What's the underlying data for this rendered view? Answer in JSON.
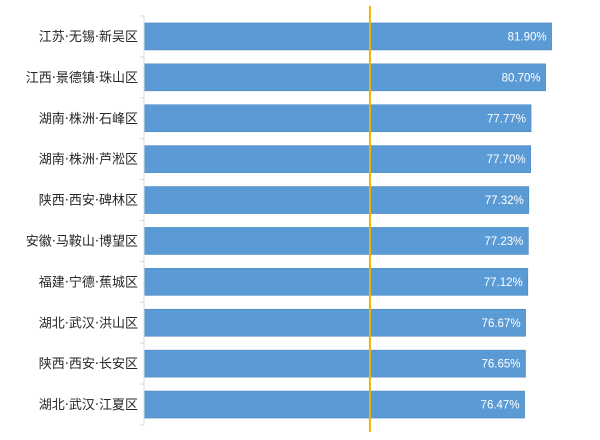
{
  "chart_data": {
    "type": "bar",
    "orientation": "horizontal",
    "categories": [
      "江苏·无锡·新吴区",
      "江西·景德镇·珠山区",
      "湖南·株洲·石峰区",
      "湖南·株洲·芦淞区",
      "陕西·西安·碑林区",
      "安徽·马鞍山·博望区",
      "福建·宁德·蕉城区",
      "湖北·武汉·洪山区",
      "陕西·西安·长安区",
      "湖北·武汉·江夏区"
    ],
    "values": [
      81.9,
      80.7,
      77.77,
      77.7,
      77.32,
      77.23,
      77.12,
      76.67,
      76.65,
      76.47
    ],
    "value_labels": [
      "81.90%",
      "80.70%",
      "77.77%",
      "77.70%",
      "77.32%",
      "77.23%",
      "77.12%",
      "76.67%",
      "76.65%",
      "76.47%"
    ],
    "unit": "%",
    "reference_line": {
      "value": 45.4,
      "color": "#f0b400"
    },
    "xlim": [
      0,
      86
    ],
    "title": "",
    "xlabel": "",
    "ylabel": "",
    "grid": false,
    "legend": "none",
    "bar_color": "#5b9bd5",
    "bar_edge_color": "#4a86c0",
    "axis_color": "#d9d9d9"
  }
}
